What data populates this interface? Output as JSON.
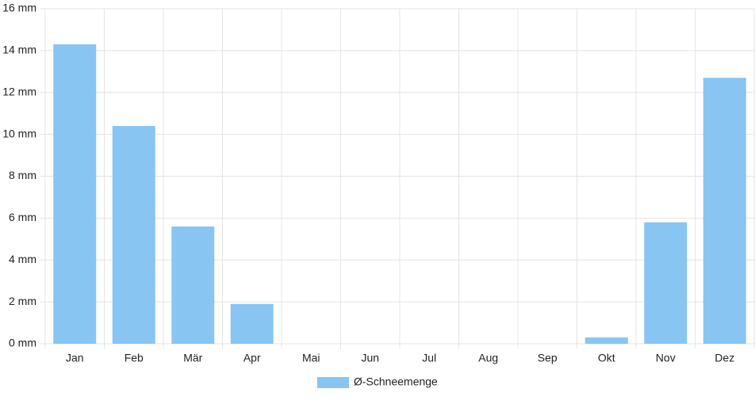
{
  "chart_data": {
    "type": "bar",
    "categories": [
      "Jan",
      "Feb",
      "Mär",
      "Apr",
      "Mai",
      "Jun",
      "Jul",
      "Aug",
      "Sep",
      "Okt",
      "Nov",
      "Dez"
    ],
    "series": [
      {
        "name": "Ø-Schneemenge",
        "color": "#88c5f2",
        "values": [
          14.3,
          10.4,
          5.6,
          1.9,
          0,
          0,
          0,
          0,
          0,
          0.3,
          5.8,
          12.7
        ]
      }
    ],
    "ylim": [
      0,
      16
    ],
    "yticks": [
      {
        "value": 0,
        "label": "0 mm"
      },
      {
        "value": 2,
        "label": "2 mm"
      },
      {
        "value": 4,
        "label": "4 mm"
      },
      {
        "value": 6,
        "label": "6 mm"
      },
      {
        "value": 8,
        "label": "8 mm"
      },
      {
        "value": 10,
        "label": "10 mm"
      },
      {
        "value": 12,
        "label": "12 mm"
      },
      {
        "value": 14,
        "label": "14 mm"
      },
      {
        "value": 16,
        "label": "16 mm"
      }
    ],
    "grid": true,
    "legend": "bottom"
  }
}
